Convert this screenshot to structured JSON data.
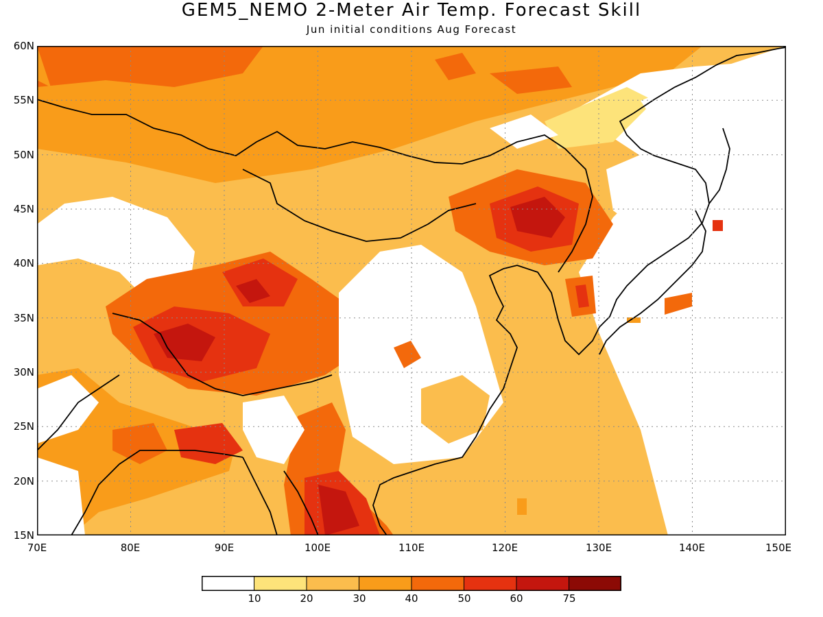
{
  "title": "GEM5_NEMO 2-Meter Air Temp. Forecast Skill",
  "subtitle": "Jun initial conditions  Aug Forecast",
  "map": {
    "lon_range": [
      70,
      150
    ],
    "lat_range": [
      15,
      60
    ],
    "lat_labels": [
      "60N",
      "55N",
      "50N",
      "45N",
      "40N",
      "35N",
      "30N",
      "25N",
      "20N",
      "15N"
    ],
    "lon_labels": [
      "70E",
      "80E",
      "90E",
      "100E",
      "110E",
      "120E",
      "130E",
      "140E",
      "150E"
    ],
    "grid": true
  },
  "colorbar": {
    "colors": [
      "#ffffff",
      "#fde37a",
      "#fbbd4d",
      "#f99c1a",
      "#f3690b",
      "#e53210",
      "#c4160e",
      "#8c0a05"
    ],
    "labels": [
      "10",
      "20",
      "30",
      "40",
      "50",
      "60",
      "75"
    ]
  }
}
